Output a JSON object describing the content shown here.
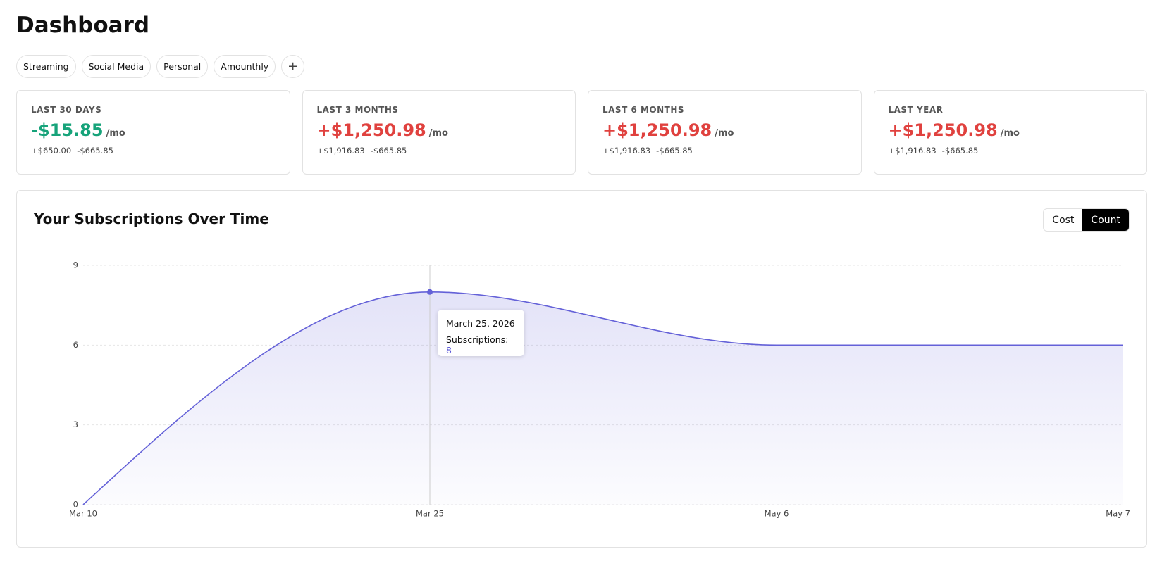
{
  "header": {
    "title": "Dashboard"
  },
  "tags": [
    "Streaming",
    "Social Media",
    "Personal",
    "Amounthly"
  ],
  "stats": [
    {
      "period": "LAST 30 DAYS",
      "net": "-$15.85",
      "unit": "/mo",
      "income": "+$650.00",
      "expense": "-$665.85"
    },
    {
      "period": "LAST 3 MONTHS",
      "net": "+$1,250.98",
      "unit": "/mo",
      "income": "+$1,916.83",
      "expense": "-$665.85"
    },
    {
      "period": "LAST 6 MONTHS",
      "net": "+$1,250.98",
      "unit": "/mo",
      "income": "+$1,916.83",
      "expense": "-$665.85"
    },
    {
      "period": "LAST YEAR",
      "net": "+$1,250.98",
      "unit": "/mo",
      "income": "+$1,916.83",
      "expense": "-$665.85"
    }
  ],
  "toggle": {
    "options": [
      "Cost",
      "Count"
    ]
  },
  "chart_data": {
    "type": "area",
    "title": "Your Subscriptions Over Time",
    "categories": [
      "Mar 10",
      "Mar 25",
      "May 6",
      "May 7"
    ],
    "values": [
      0,
      8,
      6,
      6
    ],
    "color": "#6461d8",
    "ylim": [
      0,
      9
    ],
    "yticks": [
      0,
      3,
      6,
      9
    ],
    "grid": true,
    "tooltip": {
      "title": "March 25, 2026",
      "label": "Subscriptions:"
    }
  }
}
